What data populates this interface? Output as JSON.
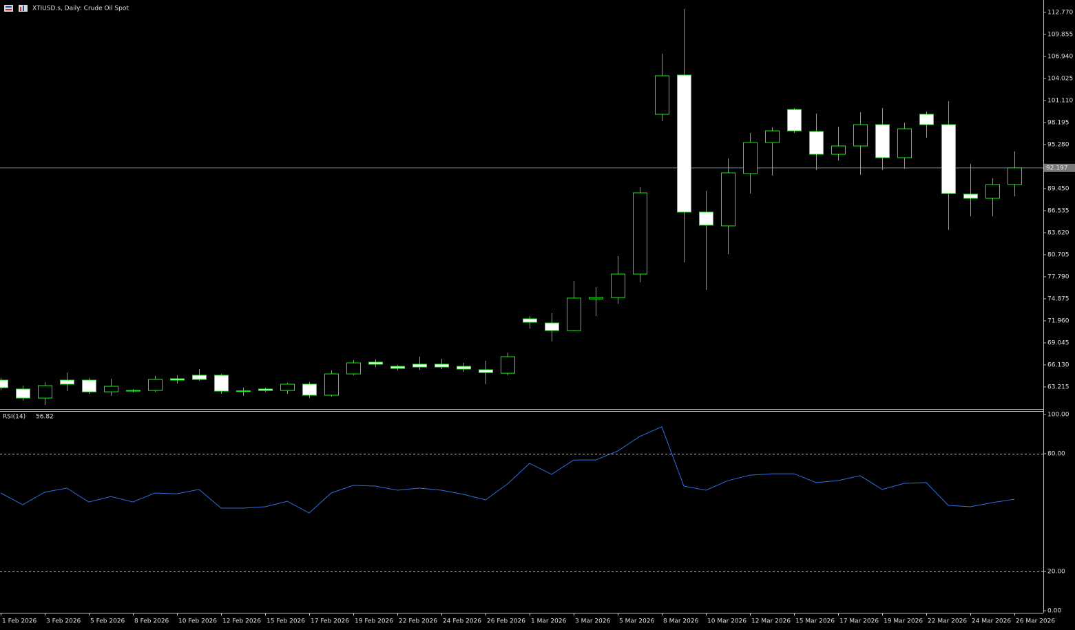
{
  "chart_data": [
    {
      "type": "candlestick",
      "title": "XTIUSD.s, Daily:  Crude Oil Spot",
      "categories": [
        "1 Feb 2026",
        null,
        "3 Feb 2026",
        null,
        "5 Feb 2026",
        null,
        "8 Feb 2026",
        null,
        "10 Feb 2026",
        null,
        "12 Feb 2026",
        null,
        "15 Feb 2026",
        null,
        "17 Feb 2026",
        null,
        "19 Feb 2026",
        null,
        "22 Feb 2026",
        null,
        "24 Feb 2026",
        null,
        "26 Feb 2026",
        null,
        "1 Mar 2026",
        null,
        "3 Mar 2026",
        null,
        "5 Mar 2026",
        null,
        "8 Mar 2026",
        null,
        "10 Mar 2026",
        null,
        "12 Mar 2026",
        null,
        "15 Mar 2026",
        null,
        "17 Mar 2026",
        null,
        "19 Mar 2026",
        null,
        "22 Mar 2026",
        null,
        "24 Mar 2026",
        null,
        "26 Mar 2026"
      ],
      "open": [
        64.12,
        62.94,
        61.75,
        64.12,
        64.12,
        62.57,
        62.66,
        62.75,
        64.3,
        64.76,
        64.76,
        62.7,
        62.94,
        62.75,
        63.58,
        62.12,
        64.94,
        66.49,
        65.94,
        66.22,
        66.22,
        65.94,
        65.49,
        65.03,
        72.23,
        71.68,
        70.68,
        74.86,
        75.05,
        78.15,
        99.29,
        104.48,
        86.35,
        84.53,
        91.45,
        95.55,
        99.92,
        97.01,
        94.0,
        95.1,
        97.92,
        93.55,
        99.29,
        97.92,
        88.72,
        88.17,
        90.0
      ],
      "high": [
        64.4,
        63.39,
        63.85,
        65.12,
        64.4,
        64.3,
        62.94,
        64.67,
        64.76,
        65.58,
        64.94,
        63.12,
        63.12,
        63.76,
        63.85,
        65.4,
        66.77,
        66.86,
        66.13,
        67.22,
        66.95,
        66.4,
        66.67,
        67.77,
        72.59,
        72.96,
        77.24,
        76.42,
        80.52,
        89.63,
        107.3,
        113.23,
        89.17,
        93.46,
        96.83,
        97.56,
        100.11,
        99.38,
        97.65,
        99.56,
        100.11,
        98.19,
        99.65,
        101.02,
        92.73,
        90.82,
        94.37
      ],
      "low": [
        62.85,
        61.39,
        60.84,
        62.66,
        62.3,
        62.03,
        62.48,
        62.57,
        63.67,
        64.03,
        62.3,
        62.03,
        62.57,
        62.3,
        61.75,
        61.94,
        64.76,
        65.85,
        65.4,
        65.49,
        65.58,
        65.21,
        63.58,
        64.76,
        70.95,
        69.23,
        70.59,
        72.59,
        74.23,
        77.06,
        98.38,
        79.7,
        76.06,
        80.79,
        88.81,
        91.18,
        96.83,
        91.91,
        93.18,
        91.27,
        91.91,
        92.09,
        96.19,
        83.98,
        85.8,
        85.8,
        88.45
      ],
      "close": [
        63.12,
        61.75,
        63.39,
        63.58,
        62.57,
        63.3,
        62.75,
        64.21,
        64.12,
        64.21,
        62.66,
        62.66,
        62.75,
        63.58,
        62.12,
        64.94,
        66.4,
        66.22,
        65.67,
        65.85,
        65.85,
        65.58,
        65.12,
        67.22,
        71.77,
        70.68,
        74.97,
        75.05,
        78.15,
        88.9,
        104.39,
        86.35,
        84.62,
        91.54,
        95.55,
        97.1,
        97.1,
        94.0,
        95.1,
        97.92,
        93.55,
        97.37,
        97.92,
        88.81,
        88.17,
        90.0,
        92.197
      ],
      "line_color": "#00ff00",
      "bull_fill": "#000000",
      "bear_fill": "#ffffff",
      "last_price": 92.197,
      "last_price_color": "#6c8aa6",
      "ylim": [
        60.39,
        114.41
      ],
      "yticks": [
        {
          "value": 112.77,
          "label": "112.770"
        },
        {
          "value": 109.855,
          "label": "109.855"
        },
        {
          "value": 106.94,
          "label": "106.940"
        },
        {
          "value": 104.025,
          "label": "104.025"
        },
        {
          "value": 101.11,
          "label": "101.110"
        },
        {
          "value": 98.195,
          "label": "98.195"
        },
        {
          "value": 95.28,
          "label": "95.280"
        },
        {
          "value": 89.45,
          "label": "89.450"
        },
        {
          "value": 86.535,
          "label": "86.535"
        },
        {
          "value": 83.62,
          "label": "83.620"
        },
        {
          "value": 80.705,
          "label": "80.705"
        },
        {
          "value": 77.79,
          "label": "77.790"
        },
        {
          "value": 74.875,
          "label": "74.875"
        },
        {
          "value": 71.96,
          "label": "71.960"
        },
        {
          "value": 69.045,
          "label": "69.045"
        },
        {
          "value": 66.13,
          "label": "66.130"
        },
        {
          "value": 63.215,
          "label": "63.215"
        }
      ]
    },
    {
      "type": "line",
      "title": "RSI(14)",
      "color": "#2f6fe0",
      "values": [
        60.0,
        54.0,
        60.4,
        62.5,
        55.4,
        58.2,
        55.4,
        60.0,
        59.6,
        61.8,
        52.3,
        52.3,
        53.0,
        55.8,
        49.8,
        60.0,
        63.9,
        63.5,
        61.4,
        62.5,
        61.4,
        59.3,
        56.5,
        64.6,
        75.1,
        69.5,
        76.8,
        76.8,
        81.4,
        88.8,
        93.7,
        63.5,
        61.4,
        66.3,
        69.1,
        69.8,
        69.8,
        65.3,
        66.3,
        68.8,
        61.8,
        64.9,
        65.3,
        53.7,
        53.0,
        55.1,
        56.82
      ],
      "ylim": [
        0,
        100
      ],
      "yticks": [
        {
          "value": 100,
          "label": "100.00"
        },
        {
          "value": 80,
          "label": "80.00"
        },
        {
          "value": 20,
          "label": "20.00"
        },
        {
          "value": 0,
          "label": "0.00"
        }
      ],
      "grid_style": "dashed"
    }
  ]
}
